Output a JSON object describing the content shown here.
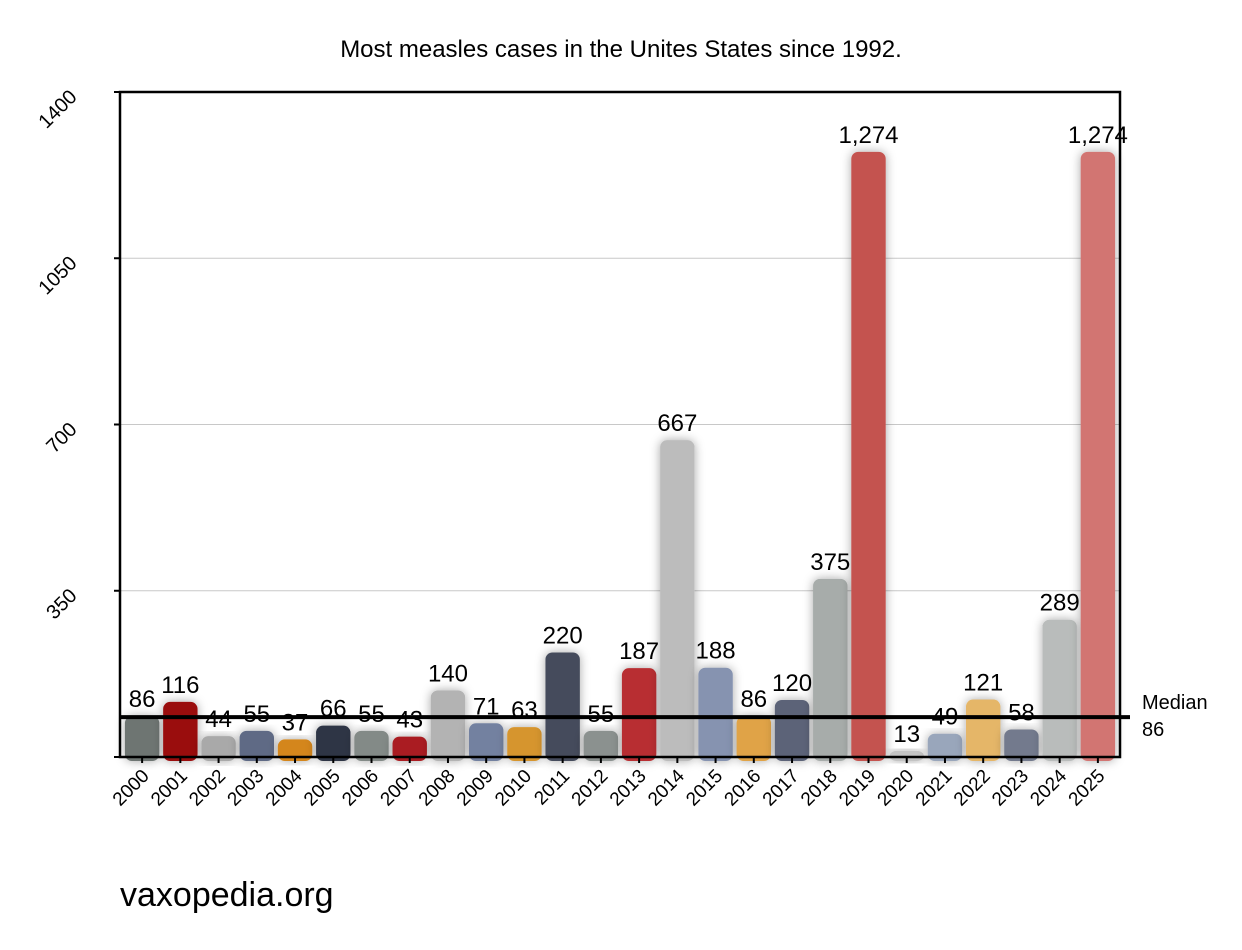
{
  "chart_data": {
    "type": "bar",
    "title": "Most measles cases in the Unites States since 1992.",
    "xlabel": "",
    "ylabel": "",
    "ylim": [
      0,
      1400
    ],
    "yticks": [
      "350",
      "700",
      "1050",
      "1400"
    ],
    "grid": true,
    "categories": [
      "2000",
      "2001",
      "2002",
      "2003",
      "2004",
      "2005",
      "2006",
      "2007",
      "2008",
      "2009",
      "2010",
      "2011",
      "2012",
      "2013",
      "2014",
      "2015",
      "2016",
      "2017",
      "2018",
      "2019",
      "2020",
      "2021",
      "2022",
      "2023",
      "2024",
      "2025"
    ],
    "values": [
      86,
      116,
      44,
      55,
      37,
      66,
      55,
      43,
      140,
      71,
      63,
      220,
      55,
      187,
      667,
      188,
      86,
      120,
      375,
      1274,
      13,
      49,
      121,
      58,
      289,
      1274
    ],
    "value_labels": [
      "86",
      "116",
      "44",
      "55",
      "37",
      "66",
      "55",
      "43",
      "140",
      "71",
      "63",
      "220",
      "55",
      "187",
      "667",
      "188",
      "86",
      "120",
      "375",
      "1,274",
      "13",
      "49",
      "121",
      "58",
      "289",
      "1,274"
    ],
    "bar_colors": [
      "#6e7572",
      "#9a0e10",
      "#a9a9a9",
      "#5e6b85",
      "#d4861c",
      "#2f3445",
      "#838a87",
      "#aa1f22",
      "#b3b3b3",
      "#7381a0",
      "#d6952e",
      "#454b5c",
      "#8b918f",
      "#b82e30",
      "#bcbcbc",
      "#8693b0",
      "#e0a346",
      "#5b6378",
      "#a7acaa",
      "#c45350",
      "#c4c4c4",
      "#99a6bb",
      "#e5b667",
      "#737a8d",
      "#b9bcbb",
      "#d27472"
    ],
    "median": {
      "value": 86,
      "label": "Median",
      "value_label": "86"
    }
  },
  "source": "vaxopedia.org"
}
